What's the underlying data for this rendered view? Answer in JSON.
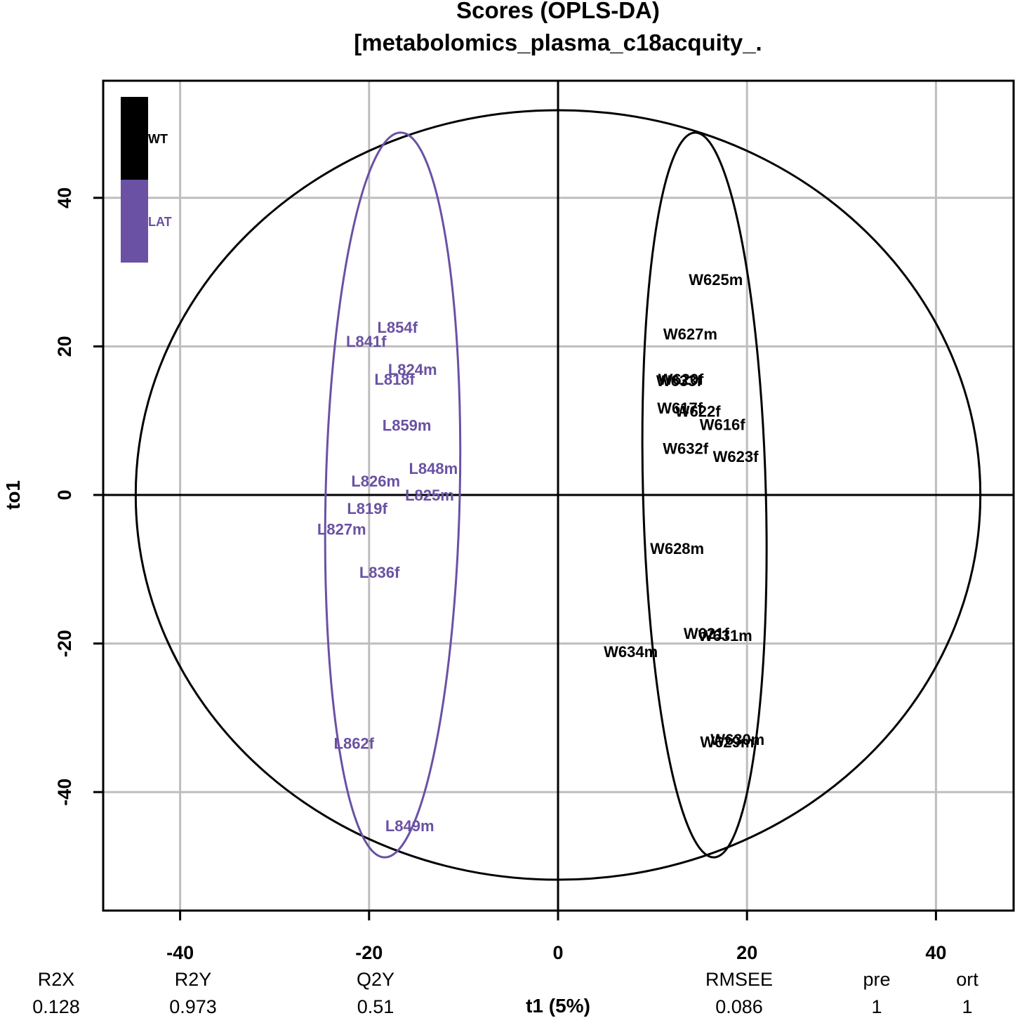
{
  "chart_data": {
    "type": "scatter",
    "title": "Scores (OPLS-DA)",
    "subtitle": "[metabolomics_plasma_c18acquity_.",
    "xlabel": "t1 (5%)",
    "ylabel": "to1",
    "xlim": [
      -48,
      48
    ],
    "ylim": [
      -56,
      56
    ],
    "xticks": [
      -40,
      -20,
      0,
      20,
      40
    ],
    "yticks": [
      -40,
      -20,
      0,
      20,
      40
    ],
    "grid": true,
    "legend_position": "top-left",
    "hotelling_ellipse": {
      "rx": 44.7,
      "ry": 51.8
    },
    "series": [
      {
        "name": "WT",
        "color": "#000000",
        "ellipse": {
          "cx": 15.5,
          "cy": 0,
          "rx": 6.5,
          "ry": 48.8,
          "tilt": -1.5
        },
        "points": [
          {
            "label": "W625m",
            "x": 16.7,
            "y": 29.0
          },
          {
            "label": "W627m",
            "x": 14.0,
            "y": 21.7
          },
          {
            "label": "W620f",
            "x": 13.0,
            "y": 15.6
          },
          {
            "label": "W633f",
            "x": 12.8,
            "y": 15.4
          },
          {
            "label": "W617f",
            "x": 12.9,
            "y": 11.7
          },
          {
            "label": "W622f",
            "x": 14.8,
            "y": 11.3
          },
          {
            "label": "W616f",
            "x": 17.4,
            "y": 9.5
          },
          {
            "label": "W632f",
            "x": 13.5,
            "y": 6.3
          },
          {
            "label": "W623f",
            "x": 18.8,
            "y": 5.2
          },
          {
            "label": "W628m",
            "x": 12.6,
            "y": -7.2
          },
          {
            "label": "W621f",
            "x": 15.7,
            "y": -18.6
          },
          {
            "label": "W631m",
            "x": 17.7,
            "y": -18.9
          },
          {
            "label": "W634m",
            "x": 7.7,
            "y": -21.1
          },
          {
            "label": "W630m",
            "x": 19.0,
            "y": -32.9
          },
          {
            "label": "W629m",
            "x": 17.9,
            "y": -33.2
          }
        ]
      },
      {
        "name": "LAT",
        "color": "#6A51A3",
        "ellipse": {
          "cx": -17.5,
          "cy": 0,
          "rx": 7.1,
          "ry": 48.8,
          "tilt": 1.3
        },
        "points": [
          {
            "label": "L854f",
            "x": -17.0,
            "y": 22.6
          },
          {
            "label": "L841f",
            "x": -20.3,
            "y": 20.7
          },
          {
            "label": "L824m",
            "x": -15.4,
            "y": 16.9
          },
          {
            "label": "L818f",
            "x": -17.3,
            "y": 15.6
          },
          {
            "label": "L859m",
            "x": -16.0,
            "y": 9.4
          },
          {
            "label": "L848m",
            "x": -13.2,
            "y": 3.6
          },
          {
            "label": "L826m",
            "x": -19.3,
            "y": 1.9
          },
          {
            "label": "L825m",
            "x": -13.6,
            "y": 0.0
          },
          {
            "label": "L819f",
            "x": -20.2,
            "y": -1.8
          },
          {
            "label": "L827m",
            "x": -22.9,
            "y": -4.6
          },
          {
            "label": "L836f",
            "x": -18.9,
            "y": -10.4
          },
          {
            "label": "L862f",
            "x": -21.6,
            "y": -33.4
          },
          {
            "label": "L849m",
            "x": -15.7,
            "y": -44.5
          }
        ]
      }
    ],
    "statistics": [
      {
        "name": "R2X",
        "value": "0.128"
      },
      {
        "name": "R2Y",
        "value": "0.973"
      },
      {
        "name": "Q2Y",
        "value": "0.51"
      },
      {
        "name": "RMSEE",
        "value": "0.086"
      },
      {
        "name": "pre",
        "value": "1"
      },
      {
        "name": "ort",
        "value": "1"
      }
    ]
  }
}
